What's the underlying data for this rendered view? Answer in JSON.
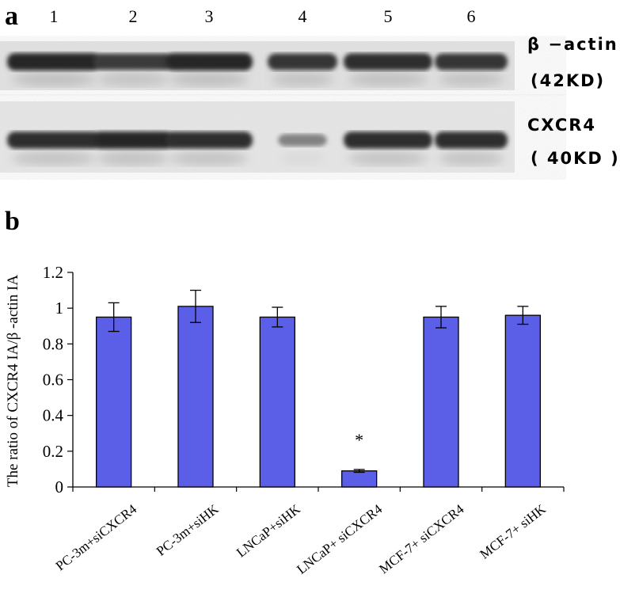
{
  "panel_a": {
    "label": "a",
    "lanes": [
      "1",
      "2",
      "3",
      "4",
      "5",
      "6"
    ],
    "blots": [
      {
        "name": "β −actin",
        "size": "(42KD)",
        "band_intensity": [
          1.0,
          0.85,
          1.0,
          0.9,
          0.95,
          0.9
        ]
      },
      {
        "name": "CXCR4",
        "size": "( 40KD )",
        "band_intensity": [
          0.95,
          1.0,
          0.95,
          0.25,
          0.95,
          0.95
        ]
      }
    ]
  },
  "panel_b": {
    "label": "b"
  },
  "chart_data": {
    "type": "bar",
    "categories": [
      "PC-3m+siCXCR4",
      "PC-3m+siHK",
      "LNCaP+siHK",
      "LNCaP+ siCXCR4",
      "MCF-7+ siCXCR4",
      "MCF-7+ siHK"
    ],
    "values": [
      0.95,
      1.01,
      0.95,
      0.09,
      0.95,
      0.96
    ],
    "error": [
      0.08,
      0.09,
      0.055,
      0.008,
      0.06,
      0.05
    ],
    "annotations": [
      "",
      "",
      "",
      "*",
      "",
      ""
    ],
    "ylabel": "The ratio of CXCR4 IA/β -actin IA",
    "xlabel": "",
    "ylim": [
      0,
      1.2
    ],
    "yticks": [
      "0",
      "0.2",
      "0.4",
      "0.6",
      "0.8",
      "1",
      "1.2"
    ],
    "bar_color": "#5b5ee6",
    "grid": false
  }
}
